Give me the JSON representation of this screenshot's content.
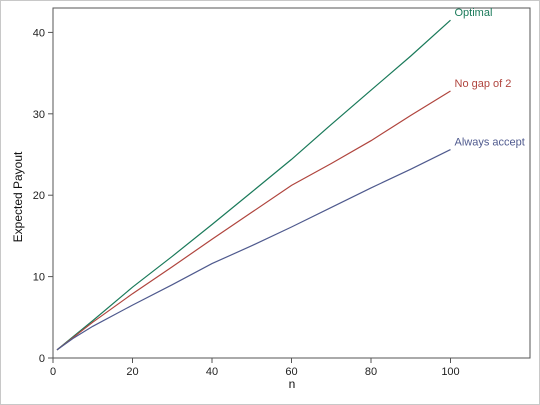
{
  "chart_data": {
    "type": "line",
    "xlabel": "n",
    "ylabel": "Expected Payout",
    "xlim": [
      0,
      120
    ],
    "ylim": [
      0,
      43
    ],
    "x_ticks": [
      0,
      20,
      40,
      60,
      80,
      100
    ],
    "y_ticks": [
      0,
      10,
      20,
      30,
      40
    ],
    "grid": false,
    "legend": "labels at line ends",
    "x": [
      1,
      5,
      10,
      20,
      30,
      40,
      50,
      60,
      70,
      80,
      90,
      100
    ],
    "series": [
      {
        "name": "Optimal",
        "color": "#1a7a5a",
        "values": [
          1.0,
          2.6,
          4.6,
          8.7,
          12.5,
          16.4,
          20.4,
          24.4,
          28.7,
          32.9,
          37.1,
          41.5
        ]
      },
      {
        "name": "No gap of 2",
        "color": "#b0453e",
        "values": [
          1.0,
          2.5,
          4.4,
          7.9,
          11.2,
          14.6,
          17.9,
          21.2,
          23.9,
          26.7,
          29.8,
          32.8
        ]
      },
      {
        "name": "Always accept",
        "color": "#4f5a8e",
        "values": [
          1.0,
          2.4,
          3.9,
          6.5,
          9.0,
          11.6,
          13.8,
          16.1,
          18.5,
          20.9,
          23.2,
          25.6
        ]
      }
    ]
  }
}
